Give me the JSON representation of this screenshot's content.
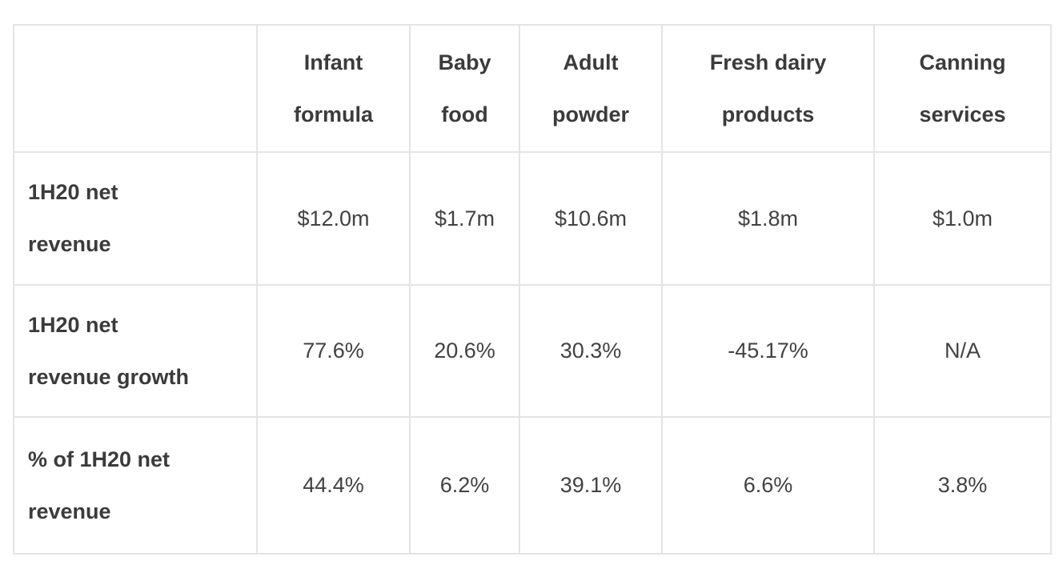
{
  "chart_data": {
    "type": "table",
    "columns": [
      "",
      "Infant formula",
      "Baby food",
      "Adult powder",
      "Fresh dairy products",
      "Canning services"
    ],
    "rows": [
      {
        "label": "1H20 net revenue",
        "values": [
          "$12.0m",
          "$1.7m",
          "$10.6m",
          "$1.8m",
          "$1.0m"
        ]
      },
      {
        "label": "1H20 net revenue growth",
        "values": [
          "77.6%",
          "20.6%",
          "30.3%",
          "-45.17%",
          "N/A"
        ]
      },
      {
        "label": "% of 1H20 net revenue",
        "values": [
          "44.4%",
          "6.2%",
          "39.1%",
          "6.6%",
          "3.8%"
        ]
      }
    ],
    "title": "",
    "layout_hints": {
      "grid": true,
      "header_position": "top",
      "label_column_position": "left"
    }
  },
  "colors": {
    "border": "#e4e4e4",
    "header_text": "#3b3b3b",
    "value_text": "#424242",
    "background": "#ffffff"
  }
}
